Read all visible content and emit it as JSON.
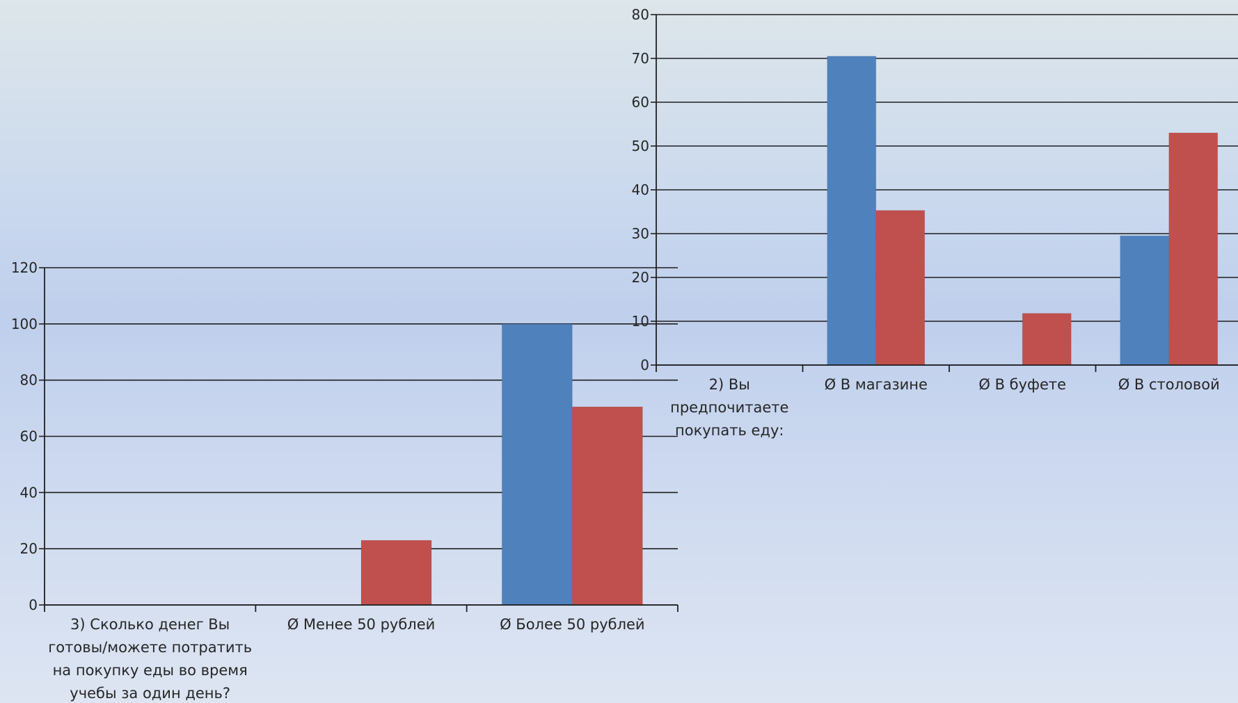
{
  "colors": {
    "series_1": "#4f81bd",
    "series_2": "#c0504d",
    "gridline": "#1f1f1f"
  },
  "chart_data": [
    {
      "type": "bar",
      "ylim": [
        0,
        120
      ],
      "yticks": [
        "0",
        "20",
        "40",
        "60",
        "80",
        "100",
        "120"
      ],
      "grid": true,
      "legend": "none",
      "categories": [
        [
          "3)     Сколько денег Вы",
          "готовы/можете потратить",
          "на покупку еды во время",
          "учебы за один день?"
        ],
        [
          "Ø  Менее 50 рублей"
        ],
        [
          "Ø  Более 50 рублей"
        ]
      ],
      "series": [
        {
          "values": [
            0,
            0,
            100
          ]
        },
        {
          "values": [
            0,
            23,
            70.5
          ]
        }
      ]
    },
    {
      "type": "bar",
      "ylim": [
        0,
        80
      ],
      "yticks": [
        "0",
        "10",
        "20",
        "30",
        "40",
        "50",
        "60",
        "70",
        "80"
      ],
      "grid": true,
      "legend": "none",
      "categories": [
        [
          "2)      Вы",
          "предпочитаете",
          "покупать еду:"
        ],
        [
          "Ø  В магазине"
        ],
        [
          "Ø  В буфете"
        ],
        [
          "Ø  В столовой"
        ]
      ],
      "series": [
        {
          "values": [
            0,
            70.5,
            0,
            29.5
          ]
        },
        {
          "values": [
            0,
            35.3,
            11.8,
            53
          ]
        }
      ]
    }
  ]
}
